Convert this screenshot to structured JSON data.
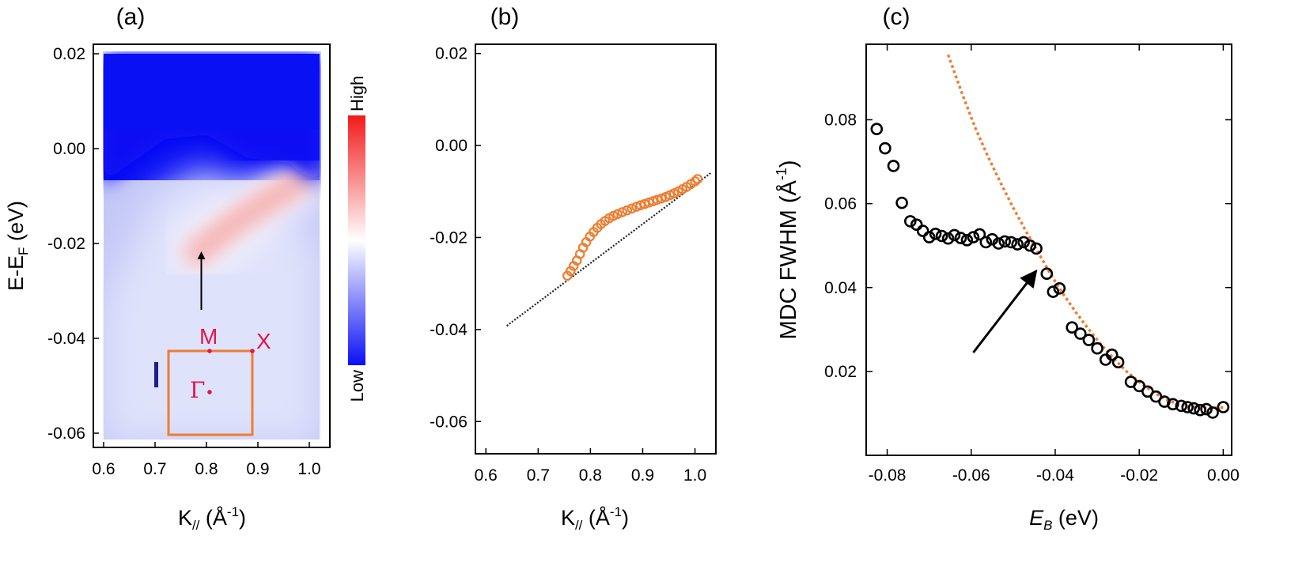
{
  "colors": {
    "colormap_low": "#0a10f4",
    "colormap_mid": "#ffffff",
    "colormap_high": "#f21a1a",
    "orange_data": "#ed7d31",
    "fit_line": "#ed7d31",
    "bz_box": "#ed7d31",
    "bz_points": "#e0174a",
    "bz_bar": "#1a1f8c"
  },
  "chart_data": [
    {
      "panel_label": "(a)",
      "type": "heatmap",
      "xlabel_main": "K",
      "xlabel_sub": "//",
      "xlabel_unit": " (Å",
      "xlabel_sup": "-1",
      "xlabel_close": ")",
      "ylabel_main": "E-E",
      "ylabel_sub": "F",
      "ylabel_unit": " (eV)",
      "xlim": [
        0.58,
        1.04
      ],
      "ylim": [
        -0.063,
        0.022
      ],
      "data_extent": {
        "x": [
          0.6,
          1.02
        ],
        "y": [
          -0.062,
          0.02
        ]
      },
      "xticks": [
        "0.6",
        "0.7",
        "0.8",
        "0.9",
        "1.0"
      ],
      "yticks": [
        "0.02",
        "0.00",
        "-0.02",
        "-0.04",
        "-0.06"
      ],
      "colorbar": {
        "high_label": "High",
        "low_label": "Low"
      },
      "band": {
        "k": [
          0.78,
          0.85,
          0.92,
          0.98
        ],
        "e": [
          -0.022,
          -0.016,
          -0.011,
          -0.007
        ]
      },
      "arrow": {
        "from": [
          0.79,
          -0.034
        ],
        "to": [
          0.79,
          -0.022
        ]
      },
      "bz_inset": {
        "points": [
          "M",
          "X",
          "Γ"
        ]
      }
    },
    {
      "panel_label": "(b)",
      "type": "scatter",
      "xlabel_main": "K",
      "xlabel_sub": "//",
      "xlabel_unit": " (Å",
      "xlabel_sup": "-1",
      "xlabel_close": ")",
      "xlim": [
        0.58,
        1.04
      ],
      "ylim": [
        -0.067,
        0.022
      ],
      "xticks": [
        "0.6",
        "0.7",
        "0.8",
        "0.9",
        "1.0"
      ],
      "yticks": [
        "0.02",
        "0.00",
        "-0.02",
        "-0.04",
        "-0.06"
      ],
      "series": [
        {
          "x": [
            0.756,
            0.762,
            0.768,
            0.774,
            0.78,
            0.786,
            0.792,
            0.799,
            0.806,
            0.813,
            0.82,
            0.828,
            0.836,
            0.844,
            0.852,
            0.861,
            0.87,
            0.879,
            0.888,
            0.896,
            0.904,
            0.912,
            0.92,
            0.928,
            0.936,
            0.944,
            0.952,
            0.96,
            0.968,
            0.976,
            0.984,
            0.992,
            1.0,
            1.005
          ],
          "y": [
            -0.0283,
            -0.0273,
            -0.0262,
            -0.025,
            -0.0236,
            -0.0222,
            -0.021,
            -0.0198,
            -0.0188,
            -0.0179,
            -0.0171,
            -0.0164,
            -0.0158,
            -0.0153,
            -0.0149,
            -0.0145,
            -0.0141,
            -0.0137,
            -0.0133,
            -0.013,
            -0.0127,
            -0.0124,
            -0.0121,
            -0.0118,
            -0.0115,
            -0.0112,
            -0.0108,
            -0.0104,
            -0.01,
            -0.0095,
            -0.009,
            -0.0084,
            -0.0078,
            -0.0073
          ]
        }
      ],
      "reference_line": {
        "x": [
          0.64,
          1.03
        ],
        "y": [
          -0.0392,
          -0.006
        ]
      }
    },
    {
      "panel_label": "(c)",
      "type": "scatter",
      "ylabel": "MDC FWHM (Å",
      "ylabel_sup": "-1",
      "ylabel_close": ")",
      "xlabel_main": "E",
      "xlabel_sub": "B",
      "xlabel_unit": " (eV)",
      "xlim": [
        -0.085,
        0.002
      ],
      "ylim": [
        0.0,
        0.098
      ],
      "xticks": [
        "-0.08",
        "-0.06",
        "-0.04",
        "-0.02",
        "0.00"
      ],
      "yticks": [
        "0.02",
        "0.04",
        "0.06",
        "0.08"
      ],
      "series": [
        {
          "x": [
            -0.0825,
            -0.0805,
            -0.0785,
            -0.0765,
            -0.0745,
            -0.073,
            -0.0715,
            -0.07,
            -0.0685,
            -0.067,
            -0.0655,
            -0.064,
            -0.0625,
            -0.061,
            -0.0595,
            -0.058,
            -0.0565,
            -0.055,
            -0.0535,
            -0.052,
            -0.0505,
            -0.049,
            -0.0475,
            -0.046,
            -0.0445,
            -0.042,
            -0.0405,
            -0.039,
            -0.036,
            -0.034,
            -0.032,
            -0.03,
            -0.028,
            -0.0265,
            -0.025,
            -0.022,
            -0.02,
            -0.018,
            -0.016,
            -0.014,
            -0.012,
            -0.01,
            -0.0085,
            -0.007,
            -0.0055,
            -0.004,
            -0.0025,
            0.0
          ],
          "y": [
            0.0778,
            0.0732,
            0.069,
            0.0602,
            0.0558,
            0.055,
            0.0535,
            0.052,
            0.0528,
            0.0523,
            0.0517,
            0.0525,
            0.0518,
            0.0513,
            0.052,
            0.0527,
            0.0508,
            0.0515,
            0.0505,
            0.051,
            0.0508,
            0.0503,
            0.0508,
            0.05,
            0.0493,
            0.0433,
            0.039,
            0.0398,
            0.0305,
            0.029,
            0.0275,
            0.0255,
            0.0228,
            0.024,
            0.0222,
            0.0175,
            0.0165,
            0.0152,
            0.014,
            0.0128,
            0.0122,
            0.0118,
            0.0115,
            0.0112,
            0.0108,
            0.011,
            0.0102,
            0.0115
          ]
        }
      ],
      "fit_curve": {
        "x": [
          -0.0655,
          -0.062,
          -0.059,
          -0.056,
          -0.053,
          -0.05,
          -0.047,
          -0.044,
          -0.041,
          -0.038,
          -0.035,
          -0.032,
          -0.029,
          -0.026,
          -0.023,
          -0.02,
          -0.017,
          -0.014,
          -0.011,
          -0.008,
          -0.005,
          -0.002,
          0.0
        ],
        "y": [
          0.0955,
          0.0858,
          0.078,
          0.0712,
          0.065,
          0.059,
          0.0535,
          0.0483,
          0.043,
          0.0383,
          0.034,
          0.03,
          0.0263,
          0.023,
          0.02,
          0.0175,
          0.0153,
          0.0135,
          0.0123,
          0.0116,
          0.0113,
          0.0113,
          0.0114
        ]
      },
      "arrow": {
        "from": [
          -0.0595,
          0.0245
        ],
        "to": [
          -0.0445,
          0.044
        ]
      }
    }
  ]
}
